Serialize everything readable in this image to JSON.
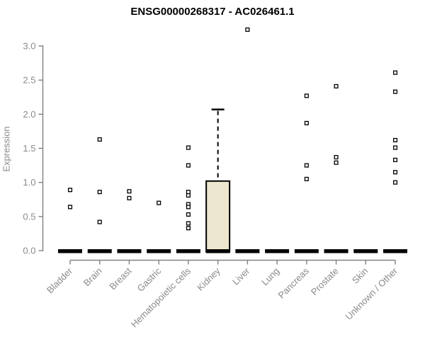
{
  "chart_data": {
    "type": "boxplot",
    "title": "ENSG00000268317 - AC026461.1",
    "ylabel": "Expression",
    "xlabel": "",
    "ylim": [
      0,
      3.3
    ],
    "yticks": [
      0.0,
      0.5,
      1.0,
      1.5,
      2.0,
      2.5,
      3.0
    ],
    "ytick_labels": [
      "0.0",
      "0.5",
      "1.0",
      "1.5",
      "2.0",
      "2.5",
      "3.0"
    ],
    "grid": false,
    "legend": "none",
    "categories": [
      "Bladder",
      "Brain",
      "Breast",
      "Gastric",
      "Hematopoietic cells",
      "Kidney",
      "Liver",
      "Lung",
      "Pancreas",
      "Prostate",
      "Skin",
      "Unknown / Other"
    ],
    "series": [
      {
        "category": "Bladder",
        "median": 0,
        "q1": 0,
        "q3": 0,
        "whisker_low": 0,
        "whisker_high": 0,
        "outliers": [
          0.89,
          0.64
        ]
      },
      {
        "category": "Brain",
        "median": 0,
        "q1": 0,
        "q3": 0,
        "whisker_low": 0,
        "whisker_high": 0,
        "outliers": [
          1.63,
          0.86,
          0.42
        ]
      },
      {
        "category": "Breast",
        "median": 0,
        "q1": 0,
        "q3": 0,
        "whisker_low": 0,
        "whisker_high": 0,
        "outliers": [
          0.87,
          0.77
        ]
      },
      {
        "category": "Gastric",
        "median": 0,
        "q1": 0,
        "q3": 0,
        "whisker_low": 0,
        "whisker_high": 0,
        "outliers": [
          0.7
        ]
      },
      {
        "category": "Hematopoietic cells",
        "median": 0,
        "q1": 0,
        "q3": 0,
        "whisker_low": 0,
        "whisker_high": 0,
        "outliers": [
          1.51,
          1.25,
          0.86,
          0.81,
          0.68,
          0.64,
          0.53,
          0.4,
          0.33
        ]
      },
      {
        "category": "Kidney",
        "median": 0,
        "q1": 0,
        "q3": 1.02,
        "whisker_low": 0,
        "whisker_high": 2.07,
        "outliers": []
      },
      {
        "category": "Liver",
        "median": 0,
        "q1": 0,
        "q3": 0,
        "whisker_low": 0,
        "whisker_high": 0,
        "outliers": [
          3.24
        ]
      },
      {
        "category": "Lung",
        "median": 0,
        "q1": 0,
        "q3": 0,
        "whisker_low": 0,
        "whisker_high": 0,
        "outliers": []
      },
      {
        "category": "Pancreas",
        "median": 0,
        "q1": 0,
        "q3": 0,
        "whisker_low": 0,
        "whisker_high": 0,
        "outliers": [
          2.27,
          1.87,
          1.25,
          1.05
        ]
      },
      {
        "category": "Prostate",
        "median": 0,
        "q1": 0,
        "q3": 0,
        "whisker_low": 0,
        "whisker_high": 0,
        "outliers": [
          2.41,
          1.37,
          1.29
        ]
      },
      {
        "category": "Skin",
        "median": 0,
        "q1": 0,
        "q3": 0,
        "whisker_low": 0,
        "whisker_high": 0,
        "outliers": []
      },
      {
        "category": "Unknown / Other",
        "median": 0,
        "q1": 0,
        "q3": 0,
        "whisker_low": 0,
        "whisker_high": 0,
        "outliers": [
          2.61,
          2.33,
          1.62,
          1.51,
          1.33,
          1.15,
          1.0
        ]
      }
    ],
    "colors": {
      "box_fill": "#ECE7CE",
      "box_border": "#000000",
      "median_bar": "#000000",
      "whisker": "#000000",
      "outlier_stroke": "#000000",
      "outlier_fill": "#FFFFFF",
      "axis_line": "#808080",
      "tick_text": "#8A8A8A",
      "title_text": "#000000",
      "background": "#FFFFFF"
    }
  }
}
